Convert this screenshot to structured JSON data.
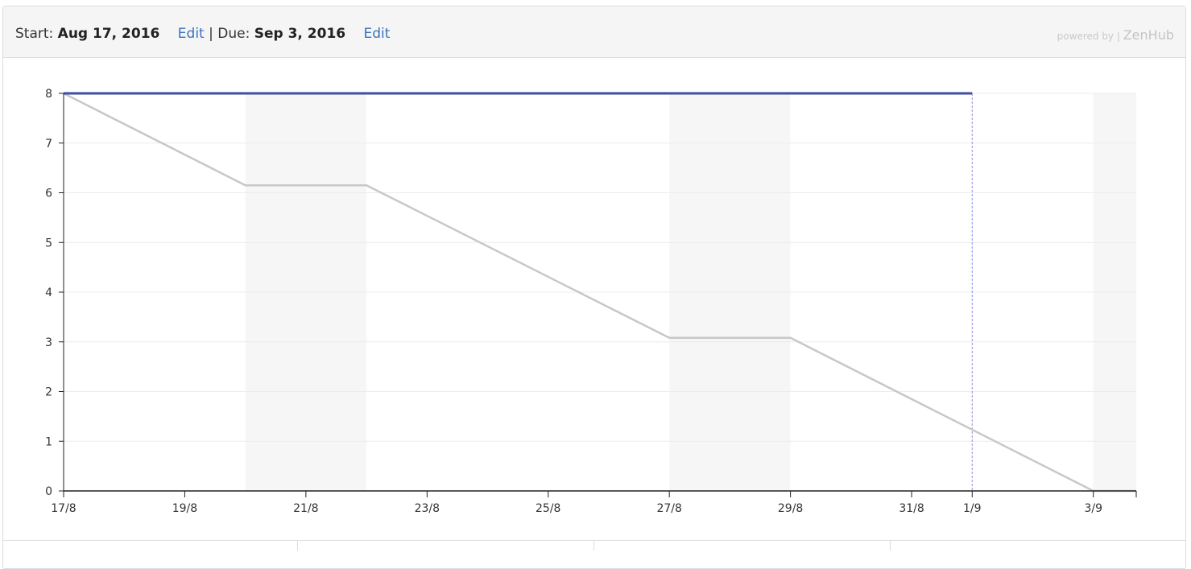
{
  "header": {
    "start_label": "Start:",
    "start_date": "Aug 17, 2016",
    "edit_label": "Edit",
    "separator": "|",
    "due_label": "Due:",
    "due_date": "Sep 3, 2016",
    "edit_label_2": "Edit",
    "powered_by": "powered by |",
    "brand": "ZenHub"
  },
  "colors": {
    "actual": "#3f4fa0",
    "ideal": "#c8c8c8",
    "weekend": "#f6f6f6",
    "today_marker": "#8a8ae8",
    "grid": "#ececec",
    "axis": "#222222"
  },
  "chart_data": {
    "type": "line",
    "x_type": "date",
    "x_tick_labels": [
      "17/8",
      "19/8",
      "21/8",
      "23/8",
      "25/8",
      "27/8",
      "29/8",
      "31/8",
      "1/9",
      "3/9"
    ],
    "x_tick_dates": [
      "2016-08-17",
      "2016-08-19",
      "2016-08-21",
      "2016-08-23",
      "2016-08-25",
      "2016-08-27",
      "2016-08-29",
      "2016-08-31",
      "2016-09-01",
      "2016-09-03"
    ],
    "xlim": [
      "2016-08-17",
      "2016-09-03T17:00"
    ],
    "ylim": [
      0,
      8
    ],
    "y_ticks": [
      0,
      1,
      2,
      3,
      4,
      5,
      6,
      7,
      8
    ],
    "grid": true,
    "title": "",
    "xlabel": "",
    "ylabel": "",
    "shaded_ranges": [
      [
        "2016-08-20",
        "2016-08-22"
      ],
      [
        "2016-08-27",
        "2016-08-29"
      ],
      [
        "2016-09-03",
        "2016-09-03T17:00"
      ]
    ],
    "marker_date": "2016-09-01",
    "series": [
      {
        "x": [
          "2016-08-17",
          "2016-09-01"
        ],
        "y": [
          8,
          8
        ]
      },
      {
        "x": [
          "2016-08-17",
          "2016-08-20",
          "2016-08-22",
          "2016-08-27",
          "2016-08-29",
          "2016-09-03",
          "2016-09-03T17:00"
        ],
        "y": [
          8,
          6.15,
          6.15,
          3.08,
          3.08,
          0,
          0
        ]
      }
    ]
  }
}
